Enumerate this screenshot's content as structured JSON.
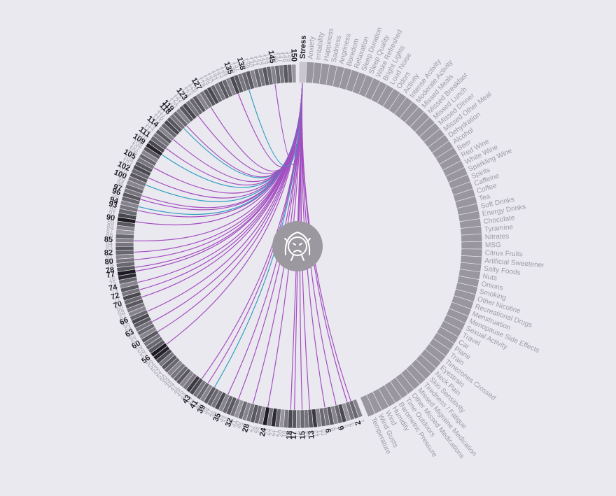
{
  "chart_data": {
    "type": "chord",
    "title": "",
    "focus_factor": "Stress",
    "center_icon": "stressed-face-icon",
    "factors": [
      "Stress",
      "Anxiety",
      "Irritability",
      "Happiness",
      "Sadness",
      "Angriness",
      "Boredom",
      "Relaxation",
      "Sleep Duration",
      "Sleep Quality",
      "Wake Refreshed",
      "Bright Lights",
      "Loud Noise",
      "Odors",
      "Activity",
      "Intense Activity",
      "Moderate Activity",
      "Missed Meals",
      "Missed Breakfast",
      "Missed Lunch",
      "Missed Dinner",
      "Missed Other Meal",
      "Dehydration",
      "Alcohol",
      "Beer",
      "Red Wine",
      "White Wine",
      "Sparkling Wine",
      "Spirits",
      "Caffeine",
      "Coffee",
      "Tea",
      "Soft Drinks",
      "Energy Drinks",
      "Chocolate",
      "Tyramine",
      "Nitrates",
      "MSG",
      "Citrus Fruits",
      "Artificial Sweetener",
      "Salty Foods",
      "Nuts",
      "Onions",
      "Smoking",
      "Other Nicotine",
      "Recreational Drugs",
      "Menstruation",
      "Menopause Side Effects",
      "Sexual Activity",
      "Travel",
      "Car",
      "Plane",
      "Train",
      "Timezones Crossed",
      "Eyestrain",
      "Neck Pain",
      "Skin Sensitivity",
      "Tiredness / Fatigue",
      "Missed Migraine Medication",
      "Other Missed Medications",
      "Time Outdoors",
      "Barometric Pressure",
      "Humidity",
      "Wind",
      "Wind Gusts",
      "Temperature"
    ],
    "days": {
      "count": 150,
      "labeled": [
        2,
        6,
        9,
        13,
        15,
        17,
        18,
        24,
        28,
        32,
        35,
        39,
        41,
        43,
        56,
        60,
        63,
        66,
        70,
        72,
        74,
        77,
        78,
        80,
        82,
        85,
        90,
        93,
        94,
        96,
        97,
        100,
        102,
        105,
        109,
        111,
        114,
        118,
        119,
        123,
        127,
        135,
        138,
        145,
        150
      ],
      "intensity": [
        0.3,
        0.5,
        0.4,
        0.2,
        0.7,
        0.5,
        0.3,
        0.6,
        0.4,
        0.5,
        0.3,
        0.8,
        0.6,
        0.4,
        0.5,
        0.3,
        0.6,
        0.7,
        0.4,
        0.2,
        0.5,
        0.9,
        0.4,
        1.0,
        0.3,
        0.5,
        0.6,
        0.4,
        0.3,
        0.5,
        0.2,
        0.4,
        0.6,
        0.5,
        0.3,
        0.7,
        0.4,
        0.5,
        0.6,
        0.3,
        0.5,
        0.4,
        0.7,
        0.8,
        0.4,
        0.3,
        0.6,
        0.5,
        0.4,
        0.3,
        0.5,
        0.6,
        0.4,
        0.7,
        0.95,
        1.0,
        0.6,
        0.5,
        0.4,
        0.6,
        0.3,
        0.5,
        0.4,
        0.6,
        0.7,
        0.5,
        0.3,
        0.4,
        0.6,
        0.5,
        0.7,
        0.4,
        0.6,
        0.3,
        0.5,
        0.9,
        1.0,
        0.6,
        0.5,
        0.4,
        0.3,
        0.5,
        0.6,
        0.4,
        0.3,
        0.5,
        0.2,
        0.3,
        0.6,
        1.0,
        0.7,
        0.5,
        0.4,
        0.3,
        0.5,
        0.6,
        0.4,
        0.5,
        0.3,
        0.4,
        0.6,
        0.5,
        0.7,
        0.6,
        0.4,
        0.5,
        0.3,
        0.6,
        0.95,
        0.7,
        0.5,
        0.4,
        0.6,
        0.3,
        0.5,
        0.7,
        0.6,
        0.4,
        0.5,
        0.3,
        0.6,
        0.7,
        0.4,
        0.5,
        0.6,
        0.3,
        0.4,
        0.6,
        0.7,
        0.5,
        0.4,
        0.6,
        0.5,
        0.3,
        0.7,
        0.6,
        0.4,
        0.5,
        0.6,
        0.3,
        0.5,
        0.4,
        0.6,
        0.5,
        0.3,
        0.5,
        0.4,
        0.6,
        0.5,
        0.2
      ],
      "links": [
        2,
        3,
        6,
        9,
        13,
        15,
        17,
        18,
        24,
        28,
        32,
        35,
        39,
        41,
        43,
        56,
        60,
        63,
        66,
        70,
        72,
        74,
        77,
        78,
        80,
        82,
        85,
        90,
        93,
        94,
        96,
        97,
        100,
        102,
        105,
        109,
        111,
        114,
        118,
        119,
        123,
        127,
        135,
        138,
        145
      ],
      "highlighted_links": [
        39,
        94,
        100,
        109,
        118,
        138
      ]
    },
    "colors": {
      "link": "#a34ec0",
      "link_highlight": "#2e9fbf",
      "factor_segment": "#9a969f",
      "day_dark": "#1e1c22",
      "day_light": "#b3b0ba",
      "center_circle": "#9b989f"
    }
  }
}
